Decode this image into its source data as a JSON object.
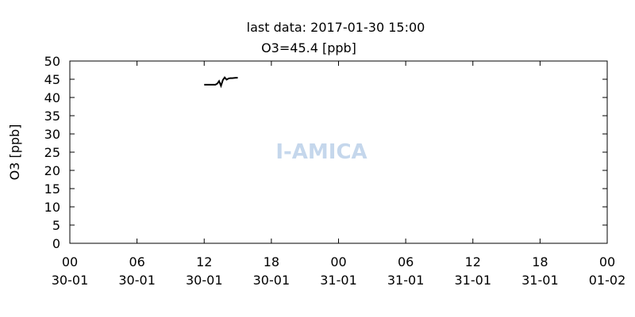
{
  "chart_data": {
    "type": "line",
    "title": "last data: 2017-01-30 15:00",
    "subtitle": "O3=45.4 [ppb]",
    "y_label": "O3 [ppb]",
    "watermark": "I-AMICA",
    "x": [
      12.0,
      12.5,
      13.0,
      13.17,
      13.33,
      13.5,
      13.67,
      13.83,
      14.0,
      14.17,
      14.33,
      14.5,
      14.83,
      15.0
    ],
    "series": [
      {
        "name": "O3",
        "color": "#000000",
        "values": [
          43.5,
          43.5,
          43.5,
          43.8,
          44.5,
          43.2,
          44.8,
          45.5,
          44.9,
          45.2,
          45.3,
          45.3,
          45.4,
          45.4
        ]
      }
    ],
    "xlim": [
      0,
      48
    ],
    "xticks": [
      {
        "value": 0,
        "label": "00\n30-01"
      },
      {
        "value": 6,
        "label": "06\n30-01"
      },
      {
        "value": 12,
        "label": "12\n30-01"
      },
      {
        "value": 18,
        "label": "18\n30-01"
      },
      {
        "value": 24,
        "label": "00\n31-01"
      },
      {
        "value": 30,
        "label": "06\n31-01"
      },
      {
        "value": 36,
        "label": "12\n31-01"
      },
      {
        "value": 42,
        "label": "18\n31-01"
      },
      {
        "value": 48,
        "label": "00\n01-02"
      }
    ],
    "ylim": [
      0,
      50
    ],
    "yticks": [
      0,
      5,
      10,
      15,
      20,
      25,
      30,
      35,
      40,
      45,
      50
    ]
  }
}
